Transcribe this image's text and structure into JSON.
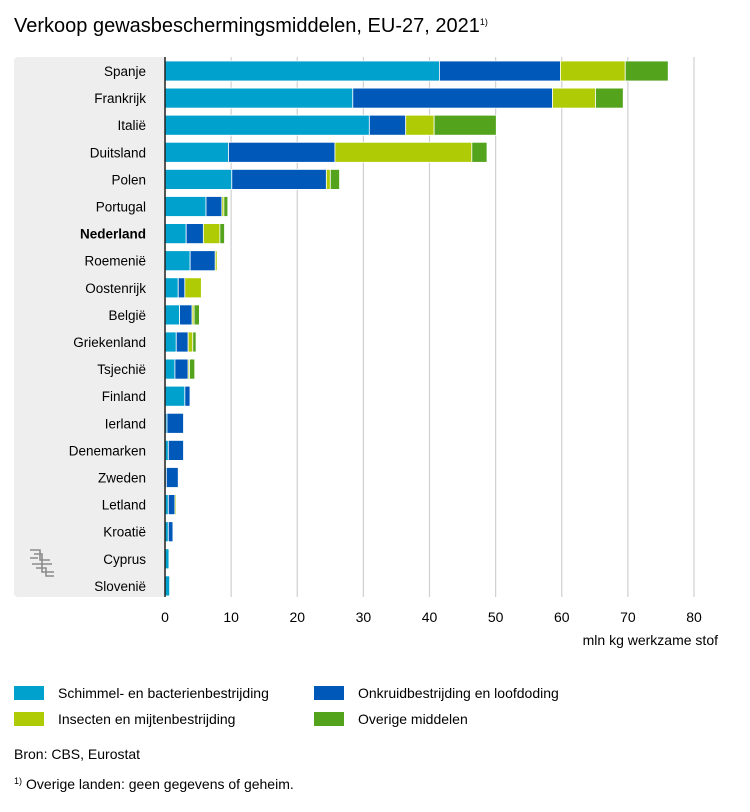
{
  "title": "Verkoop gewasbeschermingsmiddelen, EU-27, 2021",
  "title_note": "1)",
  "chart_data": {
    "type": "bar",
    "orientation": "horizontal",
    "stacked": true,
    "categories": [
      "Spanje",
      "Frankrijk",
      "Italië",
      "Duitsland",
      "Polen",
      "Portugal",
      "Nederland",
      "Roemenië",
      "Oostenrijk",
      "België",
      "Griekenland",
      "Tsjechië",
      "Finland",
      "Ierland",
      "Denemarken",
      "Zweden",
      "Letland",
      "Kroatië",
      "Cyprus",
      "Slovenië"
    ],
    "highlight_category": "Nederland",
    "series": [
      {
        "name": "Schimmel- en bacterienbestrijding",
        "color": "#00a1cd",
        "values": [
          41.5,
          28.4,
          30.9,
          9.6,
          10.1,
          6.2,
          3.2,
          3.8,
          2.0,
          2.2,
          1.7,
          1.5,
          3.0,
          0.3,
          0.5,
          0.2,
          0.5,
          0.5,
          0.6,
          0.7
        ]
      },
      {
        "name": "Onkruidbestrijding en loofdoding",
        "color": "#0058b8",
        "values": [
          18.3,
          30.2,
          5.5,
          16.1,
          14.3,
          2.4,
          2.6,
          3.8,
          1.0,
          1.9,
          1.8,
          2.0,
          0.8,
          2.5,
          2.3,
          1.8,
          1.0,
          0.7,
          0.0,
          0.0
        ]
      },
      {
        "name": "Insecten en mijtenbestrijding",
        "color": "#afcb05",
        "values": [
          9.8,
          6.5,
          4.3,
          20.7,
          0.6,
          0.3,
          2.5,
          0.3,
          2.5,
          0.3,
          0.7,
          0.2,
          0.0,
          0.0,
          0.0,
          0.0,
          0.2,
          0.0,
          0.0,
          0.0
        ]
      },
      {
        "name": "Overige middelen",
        "color": "#53a31d",
        "values": [
          6.5,
          4.2,
          9.4,
          2.3,
          1.4,
          0.6,
          0.7,
          0.1,
          0.1,
          0.8,
          0.5,
          0.8,
          0.1,
          0.0,
          0.0,
          0.0,
          0.0,
          0.0,
          0.0,
          0.0
        ]
      }
    ],
    "xlim": [
      0,
      80
    ],
    "xticks": [
      "0",
      "10",
      "20",
      "30",
      "40",
      "50",
      "60",
      "70",
      "80"
    ],
    "xlabel": "mln kg werkzame stof",
    "grid": true
  },
  "legend": {
    "items": [
      {
        "label": "Schimmel- en bacterienbestrijding",
        "color": "#00a1cd"
      },
      {
        "label": "Onkruidbestrijding en loofdoding",
        "color": "#0058b8"
      },
      {
        "label": "Insecten en mijtenbestrijding",
        "color": "#afcb05"
      },
      {
        "label": "Overige middelen",
        "color": "#53a31d"
      }
    ]
  },
  "source": "Bron: CBS, Eurostat",
  "footnote_mark": "1)",
  "footnote": "Overige landen: geen gegevens of geheim.",
  "logo_text": "cbs"
}
